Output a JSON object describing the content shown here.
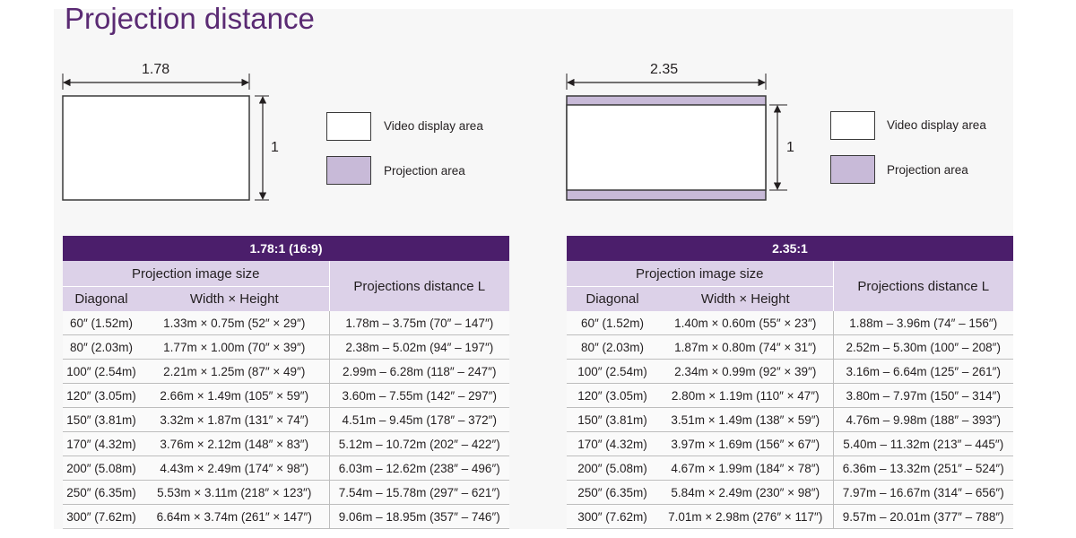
{
  "title": "Projection distance",
  "diagrams": [
    {
      "width_label": "1.78",
      "height_label": "1",
      "legend": [
        {
          "label": "Video display area",
          "color": "#ffffff"
        },
        {
          "label": "Projection area",
          "color": "#c8bad8"
        }
      ]
    },
    {
      "width_label": "2.35",
      "height_label": "1",
      "legend": [
        {
          "label": "Video display area",
          "color": "#ffffff"
        },
        {
          "label": "Projection area",
          "color": "#c8bad8"
        }
      ]
    }
  ],
  "tables": [
    {
      "title": "1.78:1 (16:9)",
      "group_header": "Projection image size",
      "col_diagonal": "Diagonal",
      "col_size": "Width × Height",
      "col_distance": "Projections distance L",
      "rows": [
        [
          "60″ (1.52m)",
          "1.33m × 0.75m (52″ × 29″)",
          "1.78m – 3.75m (70″ – 147″)"
        ],
        [
          "80″ (2.03m)",
          "1.77m × 1.00m (70″ × 39″)",
          "2.38m – 5.02m (94″ – 197″)"
        ],
        [
          "100″ (2.54m)",
          "2.21m × 1.25m (87″ × 49″)",
          "2.99m – 6.28m (118″ – 247″)"
        ],
        [
          "120″ (3.05m)",
          "2.66m × 1.49m (105″ × 59″)",
          "3.60m – 7.55m (142″ – 297″)"
        ],
        [
          "150″ (3.81m)",
          "3.32m × 1.87m (131″ × 74″)",
          "4.51m – 9.45m (178″ – 372″)"
        ],
        [
          "170″ (4.32m)",
          "3.76m × 2.12m (148″ × 83″)",
          "5.12m – 10.72m (202″ – 422″)"
        ],
        [
          "200″ (5.08m)",
          "4.43m × 2.49m (174″ × 98″)",
          "6.03m – 12.62m (238″ – 496″)"
        ],
        [
          "250″ (6.35m)",
          "5.53m × 3.11m (218″ × 123″)",
          "7.54m – 15.78m (297″ – 621″)"
        ],
        [
          "300″ (7.62m)",
          "6.64m × 3.74m (261″ × 147″)",
          "9.06m – 18.95m (357″ – 746″)"
        ]
      ]
    },
    {
      "title": "2.35:1",
      "group_header": "Projection image size",
      "col_diagonal": "Diagonal",
      "col_size": "Width × Height",
      "col_distance": "Projections distance L",
      "rows": [
        [
          "60″ (1.52m)",
          "1.40m × 0.60m (55″ × 23″)",
          "1.88m – 3.96m (74″ – 156″)"
        ],
        [
          "80″ (2.03m)",
          "1.87m × 0.80m (74″ × 31″)",
          "2.52m – 5.30m (100″ – 208″)"
        ],
        [
          "100″ (2.54m)",
          "2.34m × 0.99m (92″ × 39″)",
          "3.16m – 6.64m (125″ – 261″)"
        ],
        [
          "120″ (3.05m)",
          "2.80m × 1.19m (110″ × 47″)",
          "3.80m – 7.97m (150″ – 314″)"
        ],
        [
          "150″ (3.81m)",
          "3.51m × 1.49m (138″ × 59″)",
          "4.76m – 9.98m (188″ – 393″)"
        ],
        [
          "170″ (4.32m)",
          "3.97m × 1.69m (156″ × 67″)",
          "5.40m – 11.32m (213″ – 445″)"
        ],
        [
          "200″ (5.08m)",
          "4.67m × 1.99m (184″ × 78″)",
          "6.36m – 13.32m (251″ – 524″)"
        ],
        [
          "250″ (6.35m)",
          "5.84m × 2.49m (230″ × 98″)",
          "7.97m – 16.67m (314″ – 656″)"
        ],
        [
          "300″ (7.62m)",
          "7.01m × 2.98m (276″ × 117″)",
          "9.57m – 20.01m (377″ – 788″)"
        ]
      ]
    }
  ]
}
